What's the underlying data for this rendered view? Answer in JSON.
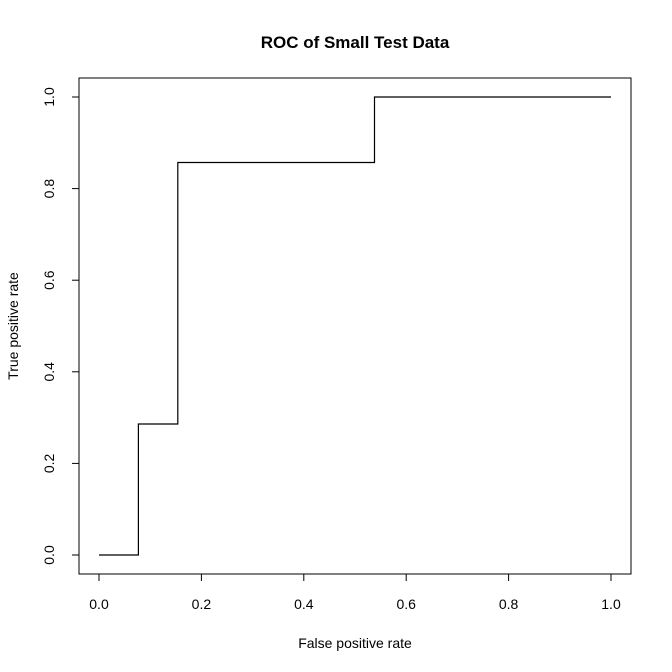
{
  "chart_data": {
    "type": "line",
    "title": "ROC of Small Test Data",
    "xlabel": "False positive rate",
    "ylabel": "True positive rate",
    "xlim": [
      0,
      1
    ],
    "ylim": [
      0,
      1
    ],
    "xticks": [
      0.0,
      0.2,
      0.4,
      0.6,
      0.8,
      1.0
    ],
    "xtick_labels": [
      "0.0",
      "0.2",
      "0.4",
      "0.6",
      "0.8",
      "1.0"
    ],
    "yticks": [
      0.0,
      0.2,
      0.4,
      0.6,
      0.8,
      1.0
    ],
    "ytick_labels": [
      "0.0",
      "0.2",
      "0.4",
      "0.6",
      "0.8",
      "1.0"
    ],
    "grid": false,
    "series": [
      {
        "name": "ROC",
        "color": "#000000",
        "x": [
          0.0,
          0.077,
          0.077,
          0.154,
          0.154,
          0.538,
          0.538,
          1.0
        ],
        "y": [
          0.0,
          0.0,
          0.286,
          0.286,
          0.857,
          0.857,
          1.0,
          1.0
        ]
      }
    ]
  }
}
